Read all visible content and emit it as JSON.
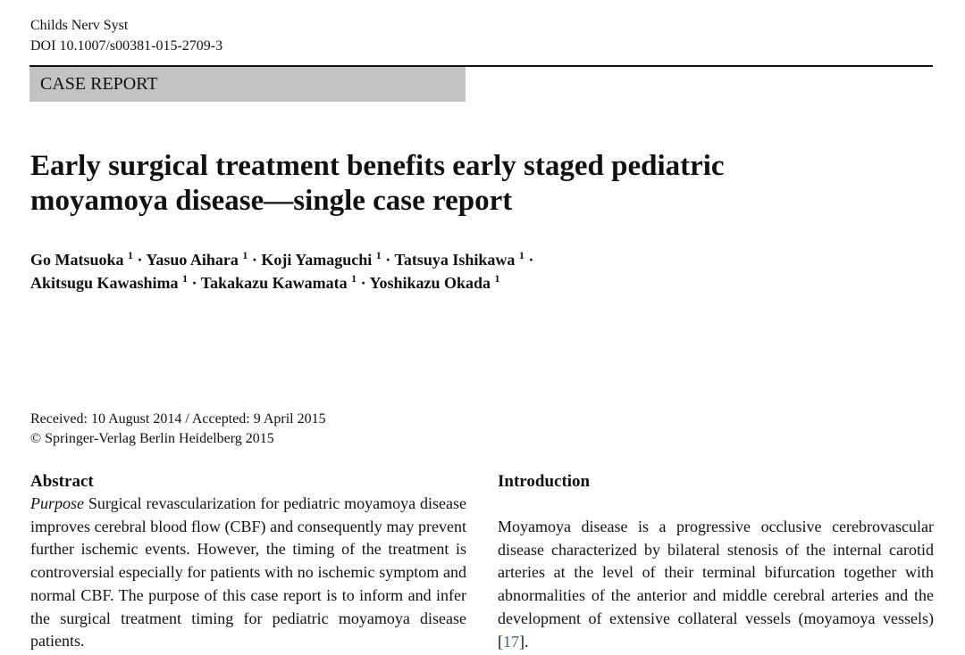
{
  "header": {
    "journal": "Childs Nerv Syst",
    "doi": "DOI 10.1007/s00381-015-2709-3",
    "article_type": "CASE REPORT"
  },
  "title": {
    "line1": "Early surgical treatment benefits early staged pediatric",
    "line2": "moyamoya disease—single case report"
  },
  "authors": [
    {
      "name": "Go Matsuoka",
      "aff": "1"
    },
    {
      "name": "Yasuo Aihara",
      "aff": "1"
    },
    {
      "name": "Koji Yamaguchi",
      "aff": "1"
    },
    {
      "name": "Tatsuya Ishikawa",
      "aff": "1"
    },
    {
      "name": "Akitsugu Kawashima",
      "aff": "1"
    },
    {
      "name": "Takakazu Kawamata",
      "aff": "1"
    },
    {
      "name": "Yoshikazu Okada",
      "aff": "1"
    }
  ],
  "author_separator": "·",
  "dates": {
    "received_accepted": "Received: 10 August 2014 / Accepted: 9 April 2015",
    "copyright": "© Springer-Verlag Berlin Heidelberg 2015"
  },
  "abstract": {
    "heading": "Abstract",
    "purpose_label": "Purpose",
    "purpose_text": "Surgical revascularization for pediatric moyamoya disease improves cerebral blood flow (CBF) and consequently may prevent further ischemic events. However, the timing of the treatment is controversial especially for patients with no ischemic symptom and normal CBF. The purpose of this case report is to inform and infer the surgical treatment timing for pediatric moyamoya disease patients."
  },
  "introduction": {
    "heading": "Introduction",
    "text": "Moyamoya disease is a progressive occlusive cerebrovascular disease characterized by bilateral stenosis of the internal carotid arteries at the level of their terminal bifurcation together with abnormalities of the anterior and middle cerebral arteries and the development of extensive collateral vessels (moyamoya vessels)",
    "ref_open": " [",
    "ref": "17",
    "ref_close": "]."
  }
}
